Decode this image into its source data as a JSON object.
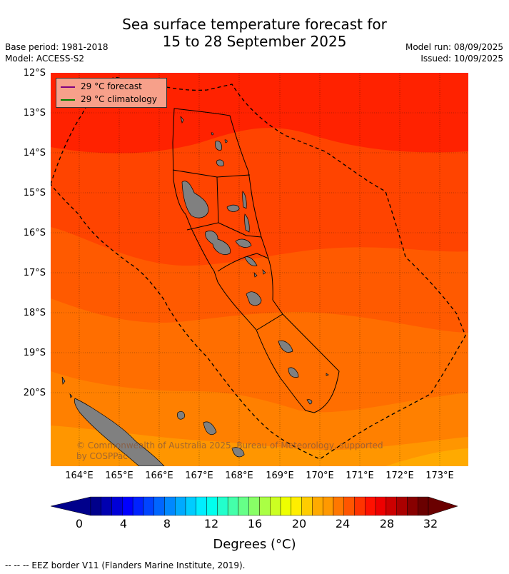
{
  "title": {
    "line1": "Sea surface temperature forecast for",
    "line2": "15 to 28 September 2025"
  },
  "meta": {
    "base_period": "Base period: 1981-2018",
    "model": "Model: ACCESS-S2",
    "model_run": "Model run: 08/09/2025",
    "issued": "Issued: 10/09/2025"
  },
  "legend": {
    "forecast": {
      "label": "29 °C  forecast",
      "color": "#800080"
    },
    "climatology": {
      "label": "29 °C  climatology",
      "color": "#008000"
    }
  },
  "lat_labels": [
    "12°S",
    "13°S",
    "14°S",
    "15°S",
    "16°S",
    "17°S",
    "18°S",
    "19°S",
    "20°S"
  ],
  "lon_labels": [
    "164°E",
    "165°E",
    "166°E",
    "167°E",
    "168°E",
    "169°E",
    "170°E",
    "171°E",
    "172°E",
    "173°E"
  ],
  "copyright": "© Commonwealth of Australia 2025, Bureau of Meteorology, supported by COSPPac",
  "colorbar": {
    "ticks": [
      "0",
      "4",
      "8",
      "12",
      "16",
      "20",
      "24",
      "28",
      "32"
    ],
    "label": "Degrees (°C)",
    "colors": [
      "#00008b",
      "#0000b0",
      "#0000d8",
      "#0000ff",
      "#0022ff",
      "#0044ff",
      "#0066ff",
      "#0088ff",
      "#00aaff",
      "#00ccff",
      "#00eeff",
      "#00ffee",
      "#22ffcc",
      "#44ffaa",
      "#66ff88",
      "#88ff66",
      "#aaff44",
      "#ccff22",
      "#eeff00",
      "#ffee00",
      "#ffcc00",
      "#ffaa00",
      "#ff9900",
      "#ff7700",
      "#ff5500",
      "#ff3300",
      "#ff1100",
      "#ee0000",
      "#cc0000",
      "#aa0000",
      "#880000",
      "#6a0000"
    ]
  },
  "footnote": "--  --  -- EEZ border V11 (Flanders Marine Institute, 2019).",
  "map": {
    "land_color": "#808080",
    "band_colors": [
      "#ff2200",
      "#ff4400",
      "#ff5a00",
      "#ff6e00",
      "#ff8000",
      "#ff9600",
      "#ffaa00"
    ]
  }
}
